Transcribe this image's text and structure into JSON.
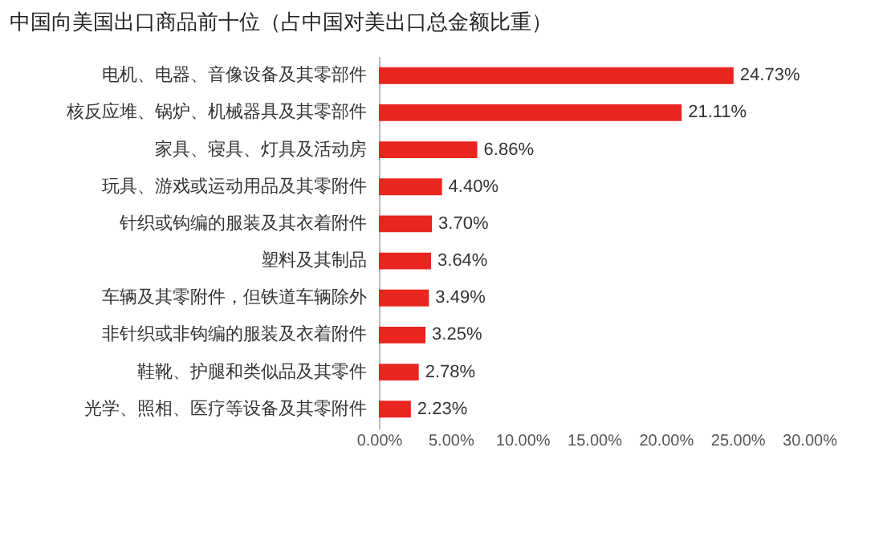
{
  "chart_data": {
    "type": "bar",
    "orientation": "horizontal",
    "title": "中国向美国出口商品前十位（占中国对美出口总金额比重）",
    "categories": [
      "电机、电器、音像设备及其零部件",
      "核反应堆、锅炉、机械器具及其零部件",
      "家具、寝具、灯具及活动房",
      "玩具、游戏或运动用品及其零附件",
      "针织或钩编的服装及其衣着附件",
      "塑料及其制品",
      "车辆及其零附件，但铁道车辆除外",
      "非针织或非钩编的服装及衣着附件",
      "鞋靴、护腿和类似品及其零件",
      "光学、照相、医疗等设备及其零附件"
    ],
    "values": [
      24.73,
      21.11,
      6.86,
      4.4,
      3.7,
      3.64,
      3.49,
      3.25,
      2.78,
      2.23
    ],
    "value_labels": [
      "24.73%",
      "21.11%",
      "6.86%",
      "4.40%",
      "3.70%",
      "3.64%",
      "3.49%",
      "3.25%",
      "2.78%",
      "2.23%"
    ],
    "color": "#e8251f",
    "xlim": [
      0,
      30
    ],
    "xticks": [
      {
        "value": 0,
        "label": "0.00%"
      },
      {
        "value": 5,
        "label": "5.00%"
      },
      {
        "value": 10,
        "label": "10.00%"
      },
      {
        "value": 15,
        "label": "15.00%"
      },
      {
        "value": 20,
        "label": "20.00%"
      },
      {
        "value": 25,
        "label": "25.00%"
      },
      {
        "value": 30,
        "label": "30.00%"
      }
    ],
    "grid": false
  }
}
